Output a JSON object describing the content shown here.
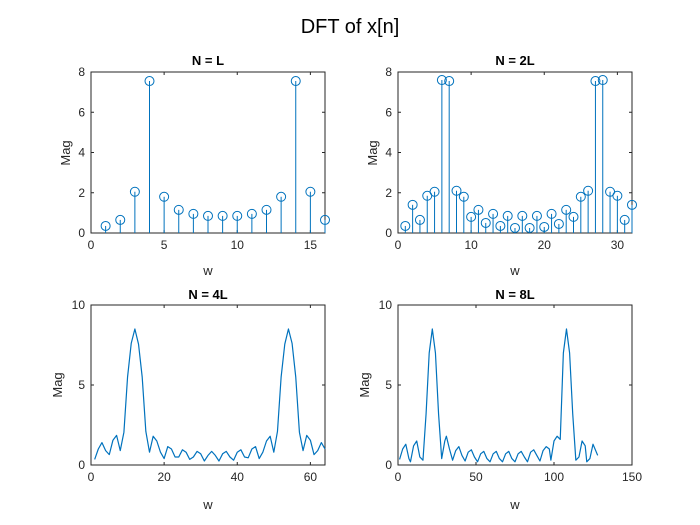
{
  "figure": {
    "suptitle": "DFT of x[n]",
    "series_color": "#0072BD"
  },
  "chart_data": [
    {
      "type": "stem",
      "title": "N = L",
      "xlabel": "w",
      "ylabel": "Mag",
      "xlim": [
        0,
        16
      ],
      "ylim": [
        0,
        8
      ],
      "xticks": [
        0,
        5,
        10,
        15
      ],
      "yticks": [
        0,
        2,
        4,
        6,
        8
      ],
      "x": [
        1,
        2,
        3,
        4,
        5,
        6,
        7,
        8,
        9,
        10,
        11,
        12,
        13,
        14,
        15,
        16
      ],
      "values": [
        0.35,
        0.65,
        2.05,
        7.55,
        1.8,
        1.15,
        0.95,
        0.85,
        0.85,
        0.85,
        0.95,
        1.15,
        1.8,
        7.55,
        2.05,
        0.65
      ]
    },
    {
      "type": "stem",
      "title": "N = 2L",
      "xlabel": "w",
      "ylabel": "Mag",
      "xlim": [
        0,
        32
      ],
      "ylim": [
        0,
        8
      ],
      "xticks": [
        0,
        10,
        20,
        30
      ],
      "yticks": [
        0,
        2,
        4,
        6,
        8
      ],
      "x": [
        1,
        2,
        3,
        4,
        5,
        6,
        7,
        8,
        9,
        10,
        11,
        12,
        13,
        14,
        15,
        16,
        17,
        18,
        19,
        20,
        21,
        22,
        23,
        24,
        25,
        26,
        27,
        28,
        29,
        30,
        31,
        32
      ],
      "values": [
        0.35,
        1.4,
        0.65,
        1.85,
        2.05,
        7.6,
        7.55,
        2.1,
        1.8,
        0.8,
        1.15,
        0.5,
        0.95,
        0.35,
        0.85,
        0.25,
        0.85,
        0.25,
        0.85,
        0.3,
        0.95,
        0.45,
        1.15,
        0.8,
        1.8,
        2.1,
        7.55,
        7.6,
        2.05,
        1.85,
        0.65,
        1.4
      ]
    },
    {
      "type": "line",
      "title": "N = 4L",
      "xlabel": "w",
      "ylabel": "Mag",
      "xlim": [
        0,
        64
      ],
      "ylim": [
        0,
        10
      ],
      "xticks": [
        0,
        20,
        40,
        60
      ],
      "yticks": [
        0,
        5,
        10
      ],
      "x": [
        1,
        2,
        3,
        4,
        5,
        6,
        7,
        8,
        9,
        10,
        11,
        12,
        13,
        14,
        15,
        16,
        17,
        18,
        19,
        20,
        21,
        22,
        23,
        24,
        25,
        26,
        27,
        28,
        29,
        30,
        31,
        32,
        33,
        34,
        35,
        36,
        37,
        38,
        39,
        40,
        41,
        42,
        43,
        44,
        45,
        46,
        47,
        48,
        49,
        50,
        51,
        52,
        53,
        54,
        55,
        56,
        57,
        58,
        59,
        60,
        61,
        62,
        63,
        64
      ],
      "values": [
        0.35,
        1.0,
        1.4,
        0.9,
        0.65,
        1.55,
        1.85,
        0.9,
        2.05,
        5.5,
        7.6,
        8.5,
        7.55,
        5.5,
        2.1,
        0.8,
        1.8,
        1.5,
        0.8,
        0.4,
        1.15,
        1.0,
        0.5,
        0.5,
        0.95,
        0.8,
        0.35,
        0.5,
        0.85,
        0.7,
        0.25,
        0.6,
        0.85,
        0.6,
        0.25,
        0.7,
        0.85,
        0.5,
        0.3,
        0.8,
        0.95,
        0.5,
        0.45,
        1.0,
        1.15,
        0.4,
        0.8,
        1.5,
        1.8,
        0.8,
        2.1,
        5.5,
        7.55,
        8.5,
        7.6,
        5.5,
        2.05,
        0.9,
        1.85,
        1.55,
        0.65,
        0.9,
        1.4,
        1.0
      ]
    },
    {
      "type": "line",
      "title": "N = 8L",
      "xlabel": "w",
      "ylabel": "Mag",
      "xlim": [
        0,
        150
      ],
      "ylim": [
        0,
        10
      ],
      "xticks": [
        0,
        50,
        100,
        150
      ],
      "yticks": [
        0,
        5,
        10
      ],
      "x": [
        1,
        3,
        5,
        7,
        8,
        10,
        12,
        14,
        16,
        18,
        20,
        22,
        24,
        26,
        28,
        30,
        31,
        33,
        35,
        37,
        39,
        41,
        43,
        45,
        47,
        49,
        51,
        53,
        55,
        57,
        59,
        61,
        63,
        65,
        67,
        69,
        71,
        73,
        75,
        77,
        79,
        81,
        83,
        85,
        87,
        89,
        91,
        93,
        95,
        97,
        98,
        100,
        102,
        104,
        106,
        108,
        110,
        112,
        114,
        116,
        118,
        120,
        121,
        123,
        125,
        128
      ],
      "values": [
        0.35,
        1.0,
        1.3,
        0.4,
        0.2,
        1.2,
        1.5,
        0.5,
        0.3,
        3.2,
        7.0,
        8.5,
        7.0,
        3.2,
        0.4,
        1.5,
        1.8,
        1.0,
        0.3,
        0.9,
        1.15,
        0.6,
        0.25,
        0.8,
        0.95,
        0.5,
        0.2,
        0.7,
        0.85,
        0.4,
        0.2,
        0.7,
        0.85,
        0.4,
        0.2,
        0.7,
        0.85,
        0.4,
        0.2,
        0.7,
        0.85,
        0.5,
        0.2,
        0.8,
        0.95,
        0.6,
        0.25,
        0.9,
        1.15,
        1.0,
        0.3,
        1.5,
        1.8,
        1.6,
        7.0,
        8.5,
        7.0,
        3.2,
        0.3,
        0.5,
        1.5,
        1.2,
        0.2,
        0.4,
        1.3,
        0.6
      ]
    }
  ]
}
